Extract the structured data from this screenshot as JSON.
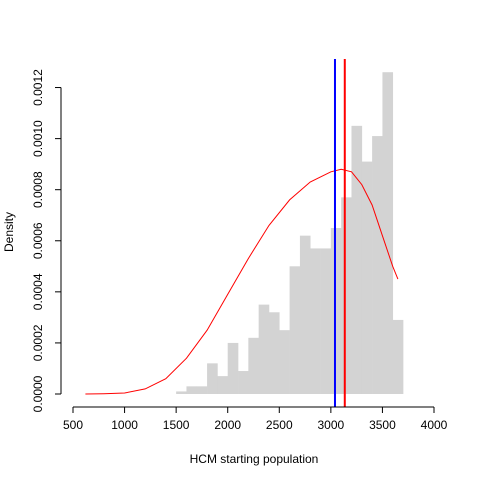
{
  "chart_data": {
    "type": "histogram",
    "xlabel": "HCM starting population",
    "ylabel": "Density",
    "xlim": [
      500,
      4000
    ],
    "ylim": [
      0,
      0.0013
    ],
    "x_ticks": [
      500,
      1000,
      1500,
      2000,
      2500,
      3000,
      3500,
      4000
    ],
    "x_tick_labels": [
      "500",
      "1000",
      "1500",
      "2000",
      "2500",
      "3000",
      "3500",
      "4000"
    ],
    "y_ticks": [
      0,
      0.0002,
      0.0004,
      0.0006,
      0.0008,
      0.001,
      0.0012
    ],
    "y_tick_labels": [
      "0.0000",
      "0.0002",
      "0.0004",
      "0.0006",
      "0.0008",
      "0.0010",
      "0.0012"
    ],
    "histogram": {
      "color": "#d3d3d3",
      "bin_width": 100,
      "bins": [
        {
          "start": 1500,
          "end": 1600,
          "density": 1e-05
        },
        {
          "start": 1600,
          "end": 1700,
          "density": 3e-05
        },
        {
          "start": 1700,
          "end": 1800,
          "density": 3e-05
        },
        {
          "start": 1800,
          "end": 1900,
          "density": 0.00012
        },
        {
          "start": 1900,
          "end": 2000,
          "density": 7e-05
        },
        {
          "start": 2000,
          "end": 2100,
          "density": 0.0002
        },
        {
          "start": 2100,
          "end": 2200,
          "density": 9e-05
        },
        {
          "start": 2200,
          "end": 2300,
          "density": 0.00022
        },
        {
          "start": 2300,
          "end": 2400,
          "density": 0.00035
        },
        {
          "start": 2400,
          "end": 2500,
          "density": 0.00032
        },
        {
          "start": 2500,
          "end": 2600,
          "density": 0.00025
        },
        {
          "start": 2600,
          "end": 2700,
          "density": 0.0005
        },
        {
          "start": 2700,
          "end": 2800,
          "density": 0.00062
        },
        {
          "start": 2800,
          "end": 2900,
          "density": 0.00057
        },
        {
          "start": 2900,
          "end": 3000,
          "density": 0.00057
        },
        {
          "start": 3000,
          "end": 3100,
          "density": 0.00065
        },
        {
          "start": 3100,
          "end": 3200,
          "density": 0.00077
        },
        {
          "start": 3200,
          "end": 3300,
          "density": 0.00105
        },
        {
          "start": 3300,
          "end": 3400,
          "density": 0.00091
        },
        {
          "start": 3400,
          "end": 3500,
          "density": 0.00101
        },
        {
          "start": 3500,
          "end": 3600,
          "density": 0.00126
        },
        {
          "start": 3600,
          "end": 3700,
          "density": 0.00029
        }
      ]
    },
    "density_curve": {
      "color": "#ff0000",
      "points": [
        [
          620,
          0.0
        ],
        [
          800,
          1e-06
        ],
        [
          1000,
          4e-06
        ],
        [
          1200,
          2e-05
        ],
        [
          1400,
          6e-05
        ],
        [
          1600,
          0.00014
        ],
        [
          1800,
          0.00025
        ],
        [
          2000,
          0.00039
        ],
        [
          2200,
          0.00053
        ],
        [
          2400,
          0.00066
        ],
        [
          2600,
          0.00076
        ],
        [
          2800,
          0.00083
        ],
        [
          3000,
          0.00087
        ],
        [
          3100,
          0.00088
        ],
        [
          3200,
          0.00087
        ],
        [
          3300,
          0.00082
        ],
        [
          3400,
          0.00074
        ],
        [
          3500,
          0.00062
        ],
        [
          3600,
          0.0005
        ],
        [
          3650,
          0.00045
        ]
      ]
    },
    "vertical_lines": [
      {
        "x": 3040,
        "color": "#0000ff"
      },
      {
        "x": 3135,
        "color": "#ff0000"
      }
    ],
    "grid": false,
    "legend": "none"
  }
}
